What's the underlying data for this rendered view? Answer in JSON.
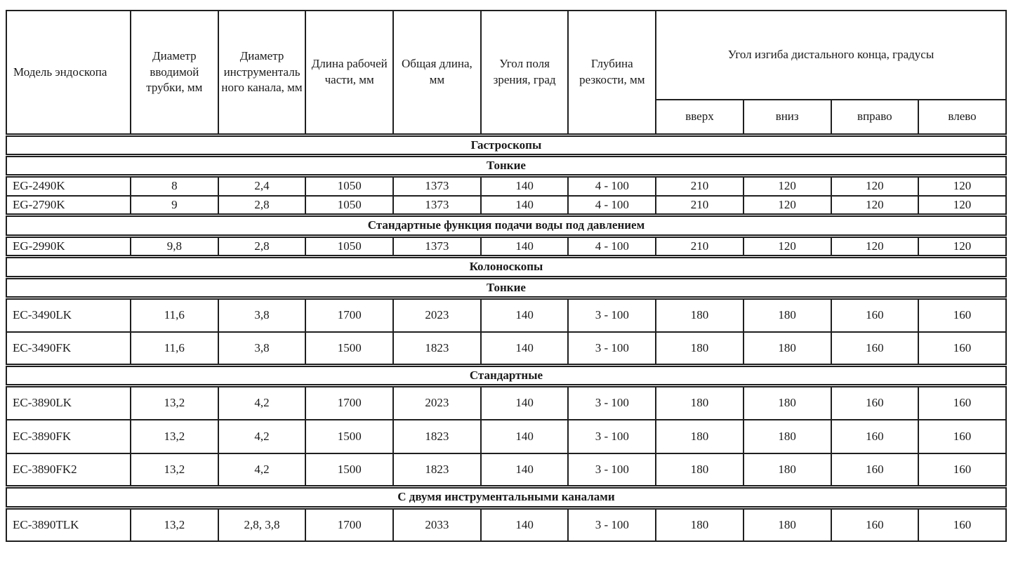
{
  "table": {
    "columns": [
      "Модель эндоскопа",
      "Диаметр вводимой трубки, мм",
      "Диаметр инструментального канала, мм",
      "Длина рабочей части, мм",
      "Общая длина, мм",
      "Угол поля зрения, град",
      "Глубина резкости, мм"
    ],
    "bend_group": {
      "label": "Угол изгиба дистального конца, градусы",
      "sub": [
        "вверх",
        "вниз",
        "вправо",
        "влево"
      ]
    },
    "rows": [
      {
        "type": "section",
        "label": "Гастроскопы"
      },
      {
        "type": "section",
        "label": "Тонкие"
      },
      {
        "type": "data",
        "model": "EG-2490K",
        "tall": false,
        "values": [
          "8",
          "2,4",
          "1050",
          "1373",
          "140",
          "4 - 100",
          "210",
          "120",
          "120",
          "120"
        ]
      },
      {
        "type": "data",
        "model": "EG-2790K",
        "tall": false,
        "values": [
          "9",
          "2,8",
          "1050",
          "1373",
          "140",
          "4 - 100",
          "210",
          "120",
          "120",
          "120"
        ]
      },
      {
        "type": "section",
        "label": "Стандартные функция подачи воды под давлением"
      },
      {
        "type": "data",
        "model": "EG-2990K",
        "tall": false,
        "values": [
          "9,8",
          "2,8",
          "1050",
          "1373",
          "140",
          "4 - 100",
          "210",
          "120",
          "120",
          "120"
        ]
      },
      {
        "type": "section",
        "label": "Колоноскопы"
      },
      {
        "type": "section",
        "label": "Тонкие"
      },
      {
        "type": "data",
        "model": "EC-3490LK",
        "tall": true,
        "values": [
          "11,6",
          "3,8",
          "1700",
          "2023",
          "140",
          "3 - 100",
          "180",
          "180",
          "160",
          "160"
        ]
      },
      {
        "type": "data",
        "model": "EC-3490FK",
        "tall": true,
        "values": [
          "11,6",
          "3,8",
          "1500",
          "1823",
          "140",
          "3 - 100",
          "180",
          "180",
          "160",
          "160"
        ]
      },
      {
        "type": "section",
        "label": "Стандартные"
      },
      {
        "type": "data",
        "model": "EC-3890LK",
        "tall": true,
        "values": [
          "13,2",
          "4,2",
          "1700",
          "2023",
          "140",
          "3 - 100",
          "180",
          "180",
          "160",
          "160"
        ]
      },
      {
        "type": "data",
        "model": "EC-3890FK",
        "tall": true,
        "values": [
          "13,2",
          "4,2",
          "1500",
          "1823",
          "140",
          "3 - 100",
          "180",
          "180",
          "160",
          "160"
        ]
      },
      {
        "type": "data",
        "model": "EC-3890FK2",
        "tall": true,
        "values": [
          "13,2",
          "4,2",
          "1500",
          "1823",
          "140",
          "3 - 100",
          "180",
          "180",
          "160",
          "160"
        ]
      },
      {
        "type": "section",
        "label": "С двумя инструментальными каналами"
      },
      {
        "type": "data",
        "model": "EC-3890TLK",
        "tall": true,
        "values": [
          "13,2",
          "2,8, 3,8",
          "1700",
          "2033",
          "140",
          "3 - 100",
          "180",
          "180",
          "160",
          "160"
        ]
      }
    ]
  }
}
